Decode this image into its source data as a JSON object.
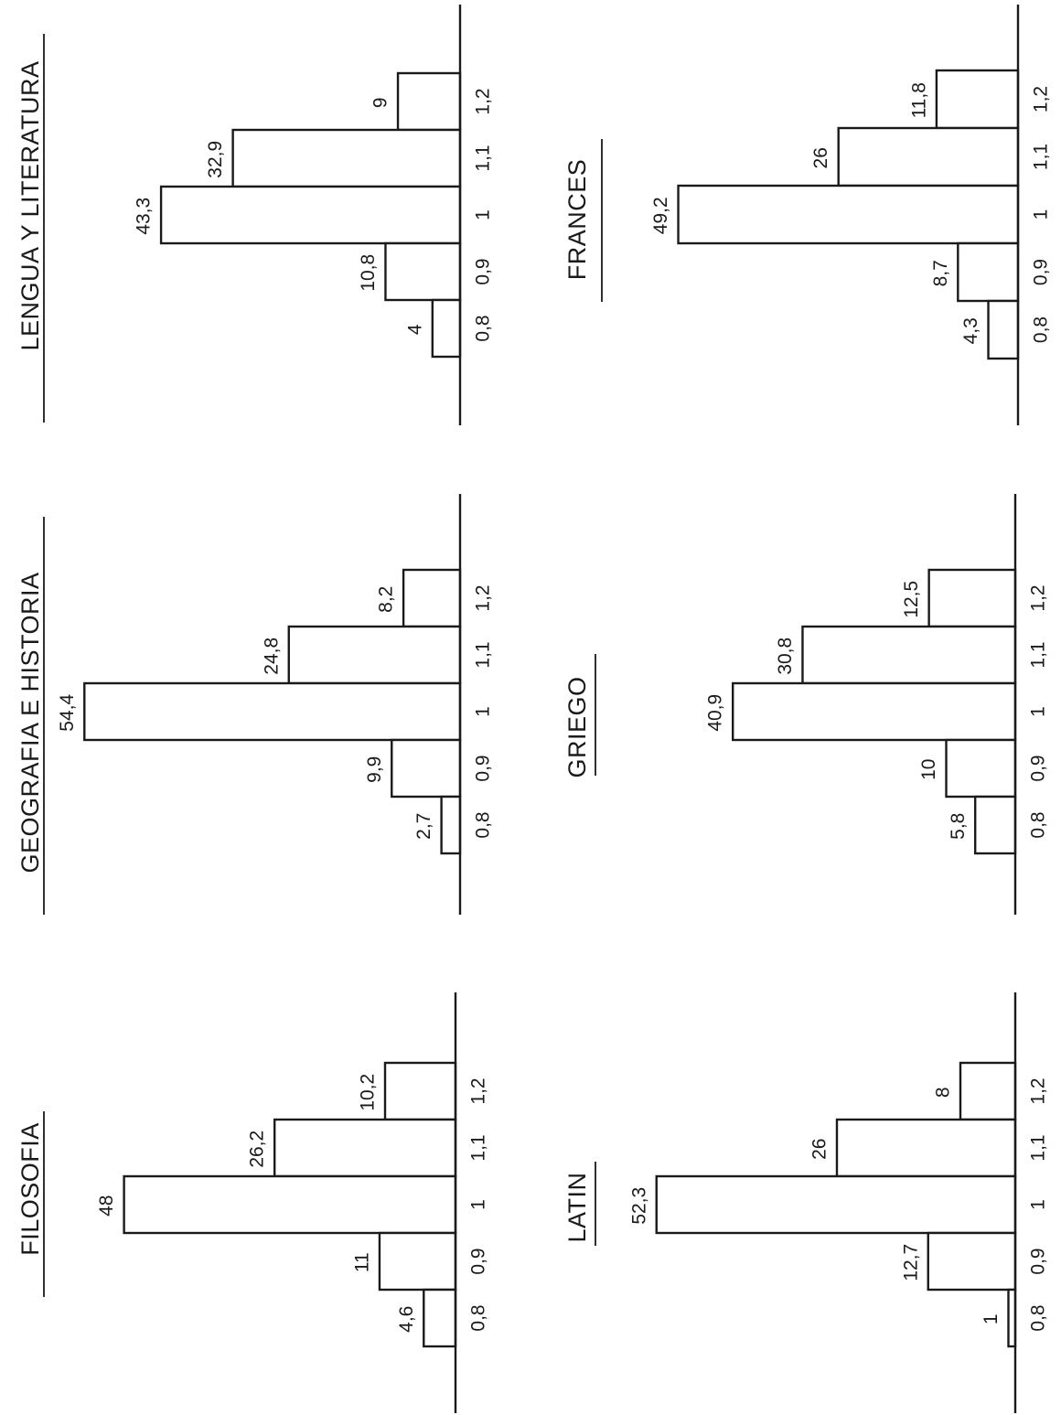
{
  "chart_data": [
    {
      "type": "bar",
      "title": "FILOSOFIA",
      "categories": [
        "0,8",
        "0,9",
        "1",
        "1,1",
        "1,2"
      ],
      "values": [
        4.6,
        11,
        48,
        26.2,
        10.2
      ],
      "value_labels": [
        "4,6",
        "11",
        "48",
        "26,2",
        "10,2"
      ],
      "ylim": [
        0,
        50
      ],
      "grid": false,
      "orientation": "rotated"
    },
    {
      "type": "bar",
      "title": "GEOGRAFIA E HISTORIA",
      "categories": [
        "0,8",
        "0,9",
        "1",
        "1,1",
        "1,2"
      ],
      "values": [
        2.7,
        9.9,
        54.4,
        24.8,
        8.2
      ],
      "value_labels": [
        "2,7",
        "9,9",
        "54,4",
        "24,8",
        "8,2"
      ],
      "ylim": [
        0,
        56
      ],
      "grid": false,
      "orientation": "rotated"
    },
    {
      "type": "bar",
      "title": "LENGUA Y LITERATURA",
      "categories": [
        "0,8",
        "0,9",
        "1",
        "1,1",
        "1,2"
      ],
      "values": [
        4,
        10.8,
        43.3,
        32.9,
        9
      ],
      "value_labels": [
        "4",
        "10,8",
        "43,3",
        "32,9",
        "9"
      ],
      "ylim": [
        0,
        50
      ],
      "grid": false,
      "orientation": "rotated"
    },
    {
      "type": "bar",
      "title": "LATIN",
      "categories": [
        "0,8",
        "0,9",
        "1",
        "1,1",
        "1,2"
      ],
      "values": [
        1,
        12.7,
        52.3,
        26,
        8
      ],
      "value_labels": [
        "1",
        "12,7",
        "52,3",
        "26",
        "8"
      ],
      "ylim": [
        0,
        56
      ],
      "grid": false,
      "orientation": "rotated"
    },
    {
      "type": "bar",
      "title": "GRIEGO",
      "categories": [
        "0,8",
        "0,9",
        "1",
        "1,1",
        "1,2"
      ],
      "values": [
        5.8,
        10,
        40.9,
        30.8,
        12.5
      ],
      "value_labels": [
        "5,8",
        "10",
        "40,9",
        "30,8",
        "12,5"
      ],
      "ylim": [
        0,
        50
      ],
      "grid": false,
      "orientation": "rotated"
    },
    {
      "type": "bar",
      "title": "FRANCES",
      "categories": [
        "0,8",
        "0,9",
        "1",
        "1,1",
        "1,2"
      ],
      "values": [
        4.3,
        8.7,
        49.2,
        26,
        11.8
      ],
      "value_labels": [
        "4,3",
        "8,7",
        "49,2",
        "26",
        "11,8"
      ],
      "ylim": [
        0,
        54
      ],
      "grid": false,
      "orientation": "rotated"
    }
  ]
}
